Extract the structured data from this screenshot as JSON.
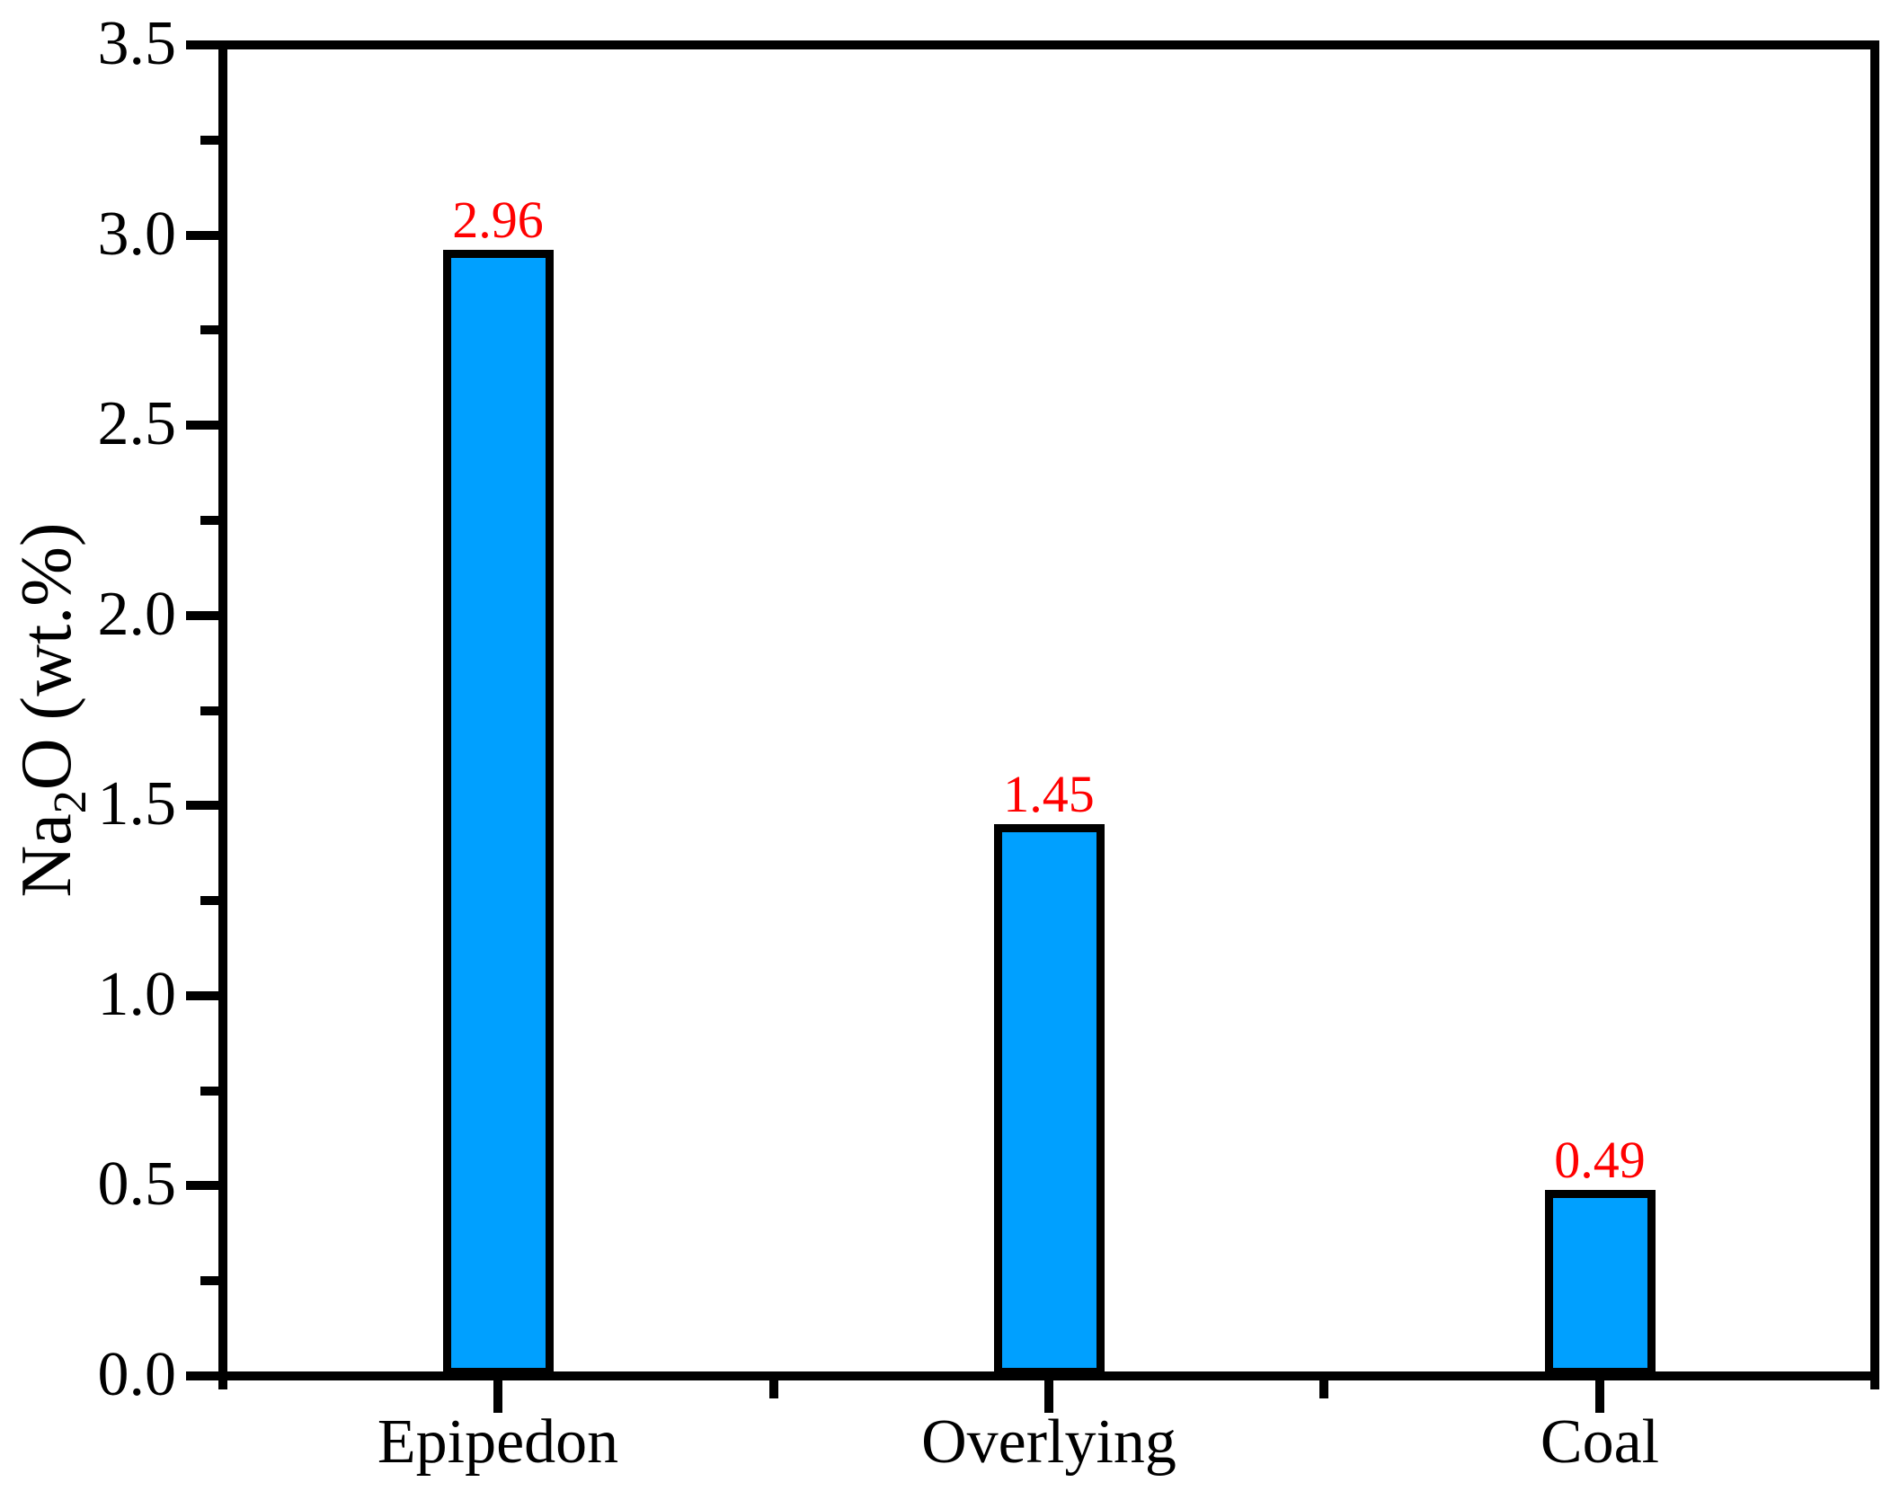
{
  "chart_data": {
    "type": "bar",
    "title": "",
    "categories": [
      "Epipedon",
      "Overlying",
      "Coal"
    ],
    "values": [
      2.96,
      1.45,
      0.49
    ],
    "value_labels": [
      "2.96",
      "1.45",
      "0.49"
    ],
    "ylabel": {
      "prefix": "Na",
      "subscript": "2",
      "suffix": "O (wt.%)"
    },
    "xlabel": "",
    "ylim": [
      0,
      3.5
    ],
    "ytick_labels": [
      "0.0",
      "0.5",
      "1.0",
      "1.5",
      "2.0",
      "2.5",
      "3.0",
      "3.5"
    ],
    "ytick_major_step": 0.5,
    "ytick_minor_step": 0.25,
    "grid": false,
    "legend": null,
    "bar_width_fraction": 0.2,
    "colors": {
      "bar_fill": "#00A0FF",
      "bar_border": "#000000",
      "value_label": "#FF0000",
      "axis": "#000000",
      "text": "#000000",
      "background": "#FFFFFF"
    }
  }
}
